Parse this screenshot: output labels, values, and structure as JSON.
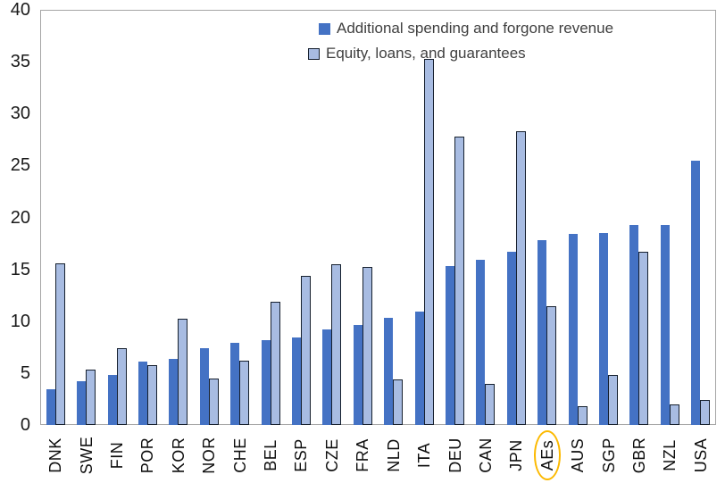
{
  "chart_data": {
    "type": "bar",
    "title": "",
    "xlabel": "",
    "ylabel": "",
    "categories": [
      "DNK",
      "SWE",
      "FIN",
      "POR",
      "KOR",
      "NOR",
      "CHE",
      "BEL",
      "ESP",
      "CZE",
      "FRA",
      "NLD",
      "ITA",
      "DEU",
      "CAN",
      "JPN",
      "AEs",
      "AUS",
      "SGP",
      "GBR",
      "NZL",
      "USA"
    ],
    "series": [
      {
        "name": "Additional spending and forgone revenue",
        "style": "solid",
        "color": "#4472C4",
        "values": [
          3.4,
          4.2,
          4.8,
          6.1,
          6.4,
          7.4,
          7.9,
          8.2,
          8.4,
          9.2,
          9.6,
          10.3,
          10.9,
          15.3,
          15.9,
          16.7,
          17.8,
          18.4,
          18.5,
          19.3,
          19.3,
          25.5
        ]
      },
      {
        "name": "Equity, loans, and guarantees",
        "style": "outlined",
        "fill_color": "#A8BCE2",
        "border_color": "#16202e",
        "values": [
          15.6,
          5.3,
          7.4,
          5.8,
          10.2,
          4.5,
          6.2,
          11.9,
          14.4,
          15.5,
          15.2,
          4.4,
          35.3,
          27.8,
          4.0,
          28.3,
          11.4,
          1.8,
          4.8,
          16.7,
          2.0,
          2.4
        ]
      }
    ],
    "ylim": [
      0,
      40
    ],
    "yticks": [
      0,
      5,
      10,
      15,
      20,
      25,
      30,
      35,
      40
    ],
    "grid": false,
    "legend_position": "top-center-inside",
    "annotation": {
      "type": "ellipse-highlight",
      "category": "AEs",
      "color": "#FCB900"
    }
  }
}
